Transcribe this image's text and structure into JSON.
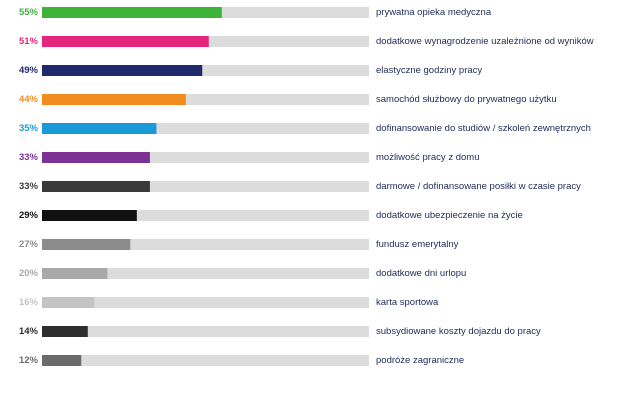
{
  "chart_data": {
    "type": "bar",
    "orientation": "horizontal",
    "xlim": [
      0,
      100
    ],
    "grid": false,
    "legend": "none",
    "categories": [
      "prywatna opieka medyczna",
      "dodatkowe wynagrodzenie uzależnione od wyników",
      "elastyczne godziny pracy",
      "samochód służbowy do prywatnego użytku",
      "dofinansowanie do studiów / szkoleń zewnętrznych",
      "możliwość pracy z domu",
      "darmowe / dofinansowane posiłki w czasie pracy",
      "dodatkowe ubezpieczenie na życie",
      "fundusz emerytalny",
      "dodatkowe dni urlopu",
      "karta sportowa",
      "subsydiowane koszty dojazdu do pracy",
      "podróże zagraniczne"
    ],
    "values": [
      55,
      51,
      49,
      44,
      35,
      33,
      33,
      29,
      27,
      20,
      16,
      14,
      12
    ],
    "value_labels": [
      "55%",
      "51%",
      "49%",
      "44%",
      "35%",
      "33%",
      "33%",
      "29%",
      "27%",
      "20%",
      "16%",
      "14%",
      "12%"
    ],
    "colors": [
      "#3db33a",
      "#e5267f",
      "#1f2a6e",
      "#f28c1e",
      "#1a9ad6",
      "#7b3294",
      "#3a3a3a",
      "#111111",
      "#8c8c8c",
      "#a9a9a9",
      "#c4c4c4",
      "#2e2e2e",
      "#6b6b6b"
    ],
    "track_color": "#dcdcdc"
  }
}
